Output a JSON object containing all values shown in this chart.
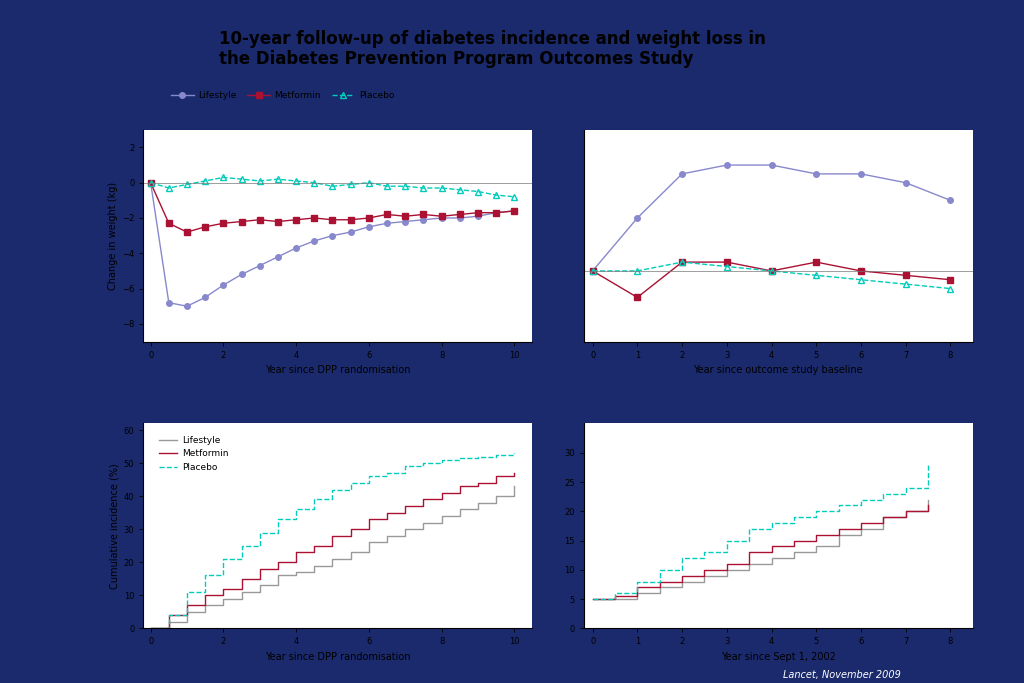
{
  "title": "10-year follow-up of diabetes incidence and weight loss in\nthe Diabetes Prevention Program Outcomes Study",
  "background_outer": "#1a2a6c",
  "background_panel_top": "#ffffff",
  "background_panel_bottom": "#ffffff",
  "title_box_color": "#ffffff",
  "weight_top_left": {
    "xlabel": "Year since DPP randomisation",
    "ylabel": "Change in weight (kg)",
    "ylim": [
      -9,
      3
    ],
    "yticks": [
      -8,
      -6,
      -4,
      -2,
      0,
      2
    ],
    "xlim": [
      -0.2,
      10.5
    ],
    "lifestyle_x": [
      0,
      0.5,
      1,
      1.5,
      2,
      2.5,
      3,
      3.5,
      4,
      4.5,
      5,
      5.5,
      6,
      6.5,
      7,
      7.5,
      8,
      8.5,
      9,
      9.5,
      10
    ],
    "lifestyle_y": [
      0,
      -6.8,
      -7.0,
      -6.5,
      -5.8,
      -5.2,
      -4.7,
      -4.2,
      -3.7,
      -3.3,
      -3.0,
      -2.8,
      -2.5,
      -2.3,
      -2.2,
      -2.1,
      -2.0,
      -2.0,
      -1.9,
      -1.7,
      -1.6
    ],
    "metformin_x": [
      0,
      0.5,
      1,
      1.5,
      2,
      2.5,
      3,
      3.5,
      4,
      4.5,
      5,
      5.5,
      6,
      6.5,
      7,
      7.5,
      8,
      8.5,
      9,
      9.5,
      10
    ],
    "metformin_y": [
      0,
      -2.3,
      -2.8,
      -2.5,
      -2.3,
      -2.2,
      -2.1,
      -2.2,
      -2.1,
      -2.0,
      -2.1,
      -2.1,
      -2.0,
      -1.8,
      -1.9,
      -1.8,
      -1.9,
      -1.8,
      -1.7,
      -1.7,
      -1.6
    ],
    "placebo_x": [
      0,
      0.5,
      1,
      1.5,
      2,
      2.5,
      3,
      3.5,
      4,
      4.5,
      5,
      5.5,
      6,
      6.5,
      7,
      7.5,
      8,
      8.5,
      9,
      9.5,
      10
    ],
    "placebo_y": [
      0,
      -0.3,
      -0.1,
      0.1,
      0.3,
      0.2,
      0.1,
      0.2,
      0.1,
      0.0,
      -0.2,
      -0.1,
      0.0,
      -0.2,
      -0.2,
      -0.3,
      -0.3,
      -0.4,
      -0.5,
      -0.7,
      -0.8
    ]
  },
  "weight_top_right": {
    "xlabel": "Year since outcome study baseline",
    "ylabel": "",
    "ylim": [
      -0.8,
      1.6
    ],
    "yticks": [],
    "xlim": [
      -0.2,
      8.5
    ],
    "lifestyle_x": [
      0,
      1,
      2,
      3,
      4,
      5,
      6,
      7,
      8
    ],
    "lifestyle_y": [
      0.0,
      0.6,
      1.1,
      1.2,
      1.2,
      1.1,
      1.1,
      1.0,
      0.8
    ],
    "metformin_x": [
      0,
      1,
      2,
      3,
      4,
      5,
      6,
      7,
      8
    ],
    "metformin_y": [
      0.0,
      -0.3,
      0.1,
      0.1,
      0.0,
      0.1,
      0.0,
      -0.05,
      -0.1
    ],
    "placebo_x": [
      0,
      1,
      2,
      3,
      4,
      5,
      6,
      7,
      8
    ],
    "placebo_y": [
      0.0,
      0.0,
      0.1,
      0.05,
      0.0,
      -0.05,
      -0.1,
      -0.15,
      -0.2
    ]
  },
  "incidence_bottom_left": {
    "xlabel": "Year since DPP randomisation",
    "ylabel": "Cumulative incidence (%)",
    "ylim": [
      0,
      62
    ],
    "yticks": [
      0,
      10,
      20,
      30,
      40,
      50,
      60
    ],
    "xlim": [
      -0.2,
      10.5
    ],
    "lifestyle_x": [
      0,
      0.5,
      1,
      1.5,
      2,
      2.5,
      3,
      3.5,
      4,
      4.5,
      5,
      5.5,
      6,
      6.5,
      7,
      7.5,
      8,
      8.5,
      9,
      9.5,
      10
    ],
    "lifestyle_y": [
      0,
      2,
      5,
      7,
      9,
      11,
      13,
      16,
      17,
      19,
      21,
      23,
      26,
      28,
      30,
      32,
      34,
      36,
      38,
      40,
      43
    ],
    "metformin_x": [
      0,
      0.5,
      1,
      1.5,
      2,
      2.5,
      3,
      3.5,
      4,
      4.5,
      5,
      5.5,
      6,
      6.5,
      7,
      7.5,
      8,
      8.5,
      9,
      9.5,
      10
    ],
    "metformin_y": [
      0,
      4,
      7,
      10,
      12,
      15,
      18,
      20,
      23,
      25,
      28,
      30,
      33,
      35,
      37,
      39,
      41,
      43,
      44,
      46,
      47
    ],
    "placebo_x": [
      0,
      0.5,
      1,
      1.5,
      2,
      2.5,
      3,
      3.5,
      4,
      4.5,
      5,
      5.5,
      6,
      6.5,
      7,
      7.5,
      8,
      8.5,
      9,
      9.5,
      10
    ],
    "placebo_y": [
      0,
      4,
      11,
      16,
      21,
      25,
      29,
      33,
      36,
      39,
      42,
      44,
      46,
      47,
      49,
      50,
      51,
      51.5,
      52,
      52.5,
      53
    ]
  },
  "incidence_bottom_right": {
    "xlabel": "Year since Sept 1, 2002",
    "ylabel": "",
    "ylim": [
      0,
      35
    ],
    "yticks": [
      0,
      5,
      10,
      15,
      20,
      25,
      30
    ],
    "xlim": [
      -0.2,
      8.5
    ],
    "lifestyle_x": [
      0,
      0.5,
      1,
      1.5,
      2,
      2.5,
      3,
      3.5,
      4,
      4.5,
      5,
      5.5,
      6,
      6.5,
      7,
      7.5
    ],
    "lifestyle_y": [
      5,
      5,
      6,
      7,
      8,
      9,
      10,
      11,
      12,
      13,
      14,
      16,
      17,
      19,
      20,
      22
    ],
    "metformin_x": [
      0,
      0.5,
      1,
      1.5,
      2,
      2.5,
      3,
      3.5,
      4,
      4.5,
      5,
      5.5,
      6,
      6.5,
      7,
      7.5
    ],
    "metformin_y": [
      5,
      5.5,
      7,
      8,
      9,
      10,
      11,
      13,
      14,
      15,
      16,
      17,
      18,
      19,
      20,
      21
    ],
    "placebo_x": [
      0,
      0.5,
      1,
      1.5,
      2,
      2.5,
      3,
      3.5,
      4,
      4.5,
      5,
      5.5,
      6,
      6.5,
      7,
      7.5
    ],
    "placebo_y": [
      5,
      6,
      8,
      10,
      12,
      13,
      15,
      17,
      18,
      19,
      20,
      21,
      22,
      23,
      24,
      28
    ]
  },
  "lifestyle_color": "#8888cc",
  "metformin_color": "#aa1133",
  "placebo_color": "#00ccbb",
  "font_size_label": 7,
  "font_size_legend": 6.5,
  "font_size_title": 12
}
